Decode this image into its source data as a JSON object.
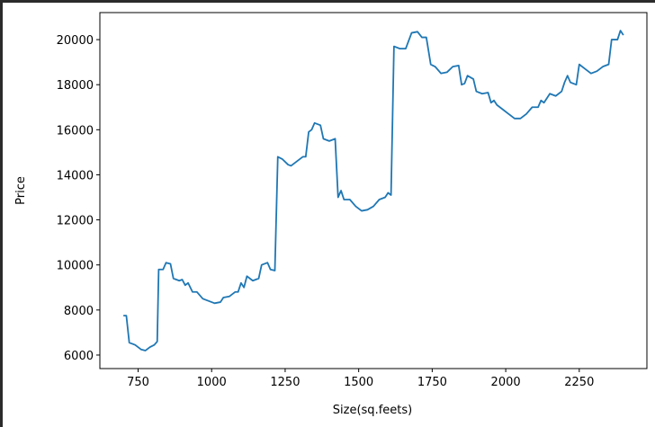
{
  "chart_data": {
    "type": "line",
    "x_label": "Size(sq.feets)",
    "y_label": "Price",
    "x": [
      700,
      710,
      720,
      740,
      760,
      775,
      790,
      805,
      815,
      820,
      835,
      845,
      860,
      870,
      890,
      900,
      910,
      920,
      935,
      950,
      970,
      990,
      1010,
      1030,
      1040,
      1060,
      1080,
      1090,
      1100,
      1110,
      1120,
      1140,
      1160,
      1170,
      1190,
      1200,
      1215,
      1225,
      1240,
      1260,
      1270,
      1290,
      1310,
      1320,
      1330,
      1340,
      1350,
      1370,
      1380,
      1400,
      1420,
      1430,
      1440,
      1450,
      1470,
      1490,
      1510,
      1530,
      1550,
      1570,
      1590,
      1600,
      1610,
      1620,
      1640,
      1660,
      1680,
      1700,
      1715,
      1730,
      1745,
      1760,
      1780,
      1800,
      1820,
      1840,
      1850,
      1860,
      1870,
      1890,
      1900,
      1920,
      1940,
      1950,
      1960,
      1970,
      1990,
      2010,
      2030,
      2050,
      2070,
      2090,
      2110,
      2120,
      2130,
      2150,
      2170,
      2190,
      2200,
      2210,
      2220,
      2240,
      2250,
      2270,
      2290,
      2310,
      2330,
      2350,
      2360,
      2380,
      2390,
      2400
    ],
    "series": [
      {
        "color": "#1f77b4",
        "values": [
          7750,
          7750,
          6550,
          6450,
          6250,
          6200,
          6350,
          6450,
          6600,
          9800,
          9800,
          10100,
          10050,
          9400,
          9300,
          9350,
          9100,
          9200,
          8800,
          8800,
          8500,
          8400,
          8300,
          8350,
          8550,
          8600,
          8800,
          8800,
          9200,
          9000,
          9500,
          9300,
          9400,
          10000,
          10100,
          9800,
          9750,
          14800,
          14700,
          14450,
          14400,
          14600,
          14800,
          14800,
          15900,
          16000,
          16300,
          16200,
          15600,
          15500,
          15600,
          13000,
          13300,
          12900,
          12900,
          12600,
          12400,
          12450,
          12600,
          12900,
          13000,
          13200,
          13100,
          19700,
          19600,
          19600,
          20300,
          20350,
          20100,
          20100,
          18900,
          18800,
          18500,
          18550,
          18800,
          18850,
          18000,
          18050,
          18400,
          18250,
          17700,
          17600,
          17650,
          17200,
          17300,
          17100,
          16900,
          16700,
          16500,
          16500,
          16700,
          17000,
          17000,
          17300,
          17200,
          17600,
          17500,
          17700,
          18100,
          18400,
          18100,
          18000,
          18900,
          18700,
          18500,
          18600,
          18800,
          18900,
          20000,
          20000,
          20400,
          20200
        ]
      }
    ],
    "xlim": [
      620,
      2480
    ],
    "xticks": [
      750,
      1000,
      1250,
      1500,
      1750,
      2000,
      2250
    ],
    "ylim": [
      5400,
      21200
    ],
    "yticks": [
      6000,
      8000,
      10000,
      12000,
      14000,
      16000,
      18000,
      20000
    ]
  }
}
